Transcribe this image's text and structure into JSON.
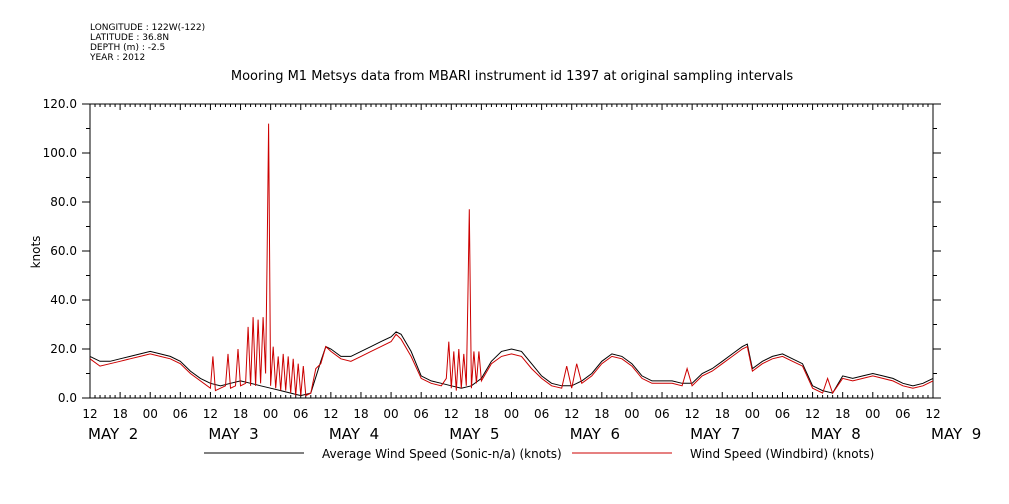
{
  "header": {
    "meta_lines": [
      "LONGITUDE : 122W(-122)",
      "LATITUDE : 36.8N",
      "DEPTH (m) : -2.5",
      "YEAR : 2012"
    ]
  },
  "chart_data": {
    "type": "line",
    "title": "Mooring M1 Metsys data from MBARI instrument id 1397 at original sampling intervals",
    "xlabel": "",
    "ylabel": "knots",
    "ylim": [
      0,
      120
    ],
    "y_ticks": [
      0,
      20,
      40,
      60,
      80,
      100,
      120
    ],
    "x_unit": "hours since May 2 12:00 (2012)",
    "xlim": [
      0,
      168
    ],
    "x_ticks": [
      {
        "t": 0,
        "label": "12"
      },
      {
        "t": 6,
        "label": "18"
      },
      {
        "t": 12,
        "label": "00"
      },
      {
        "t": 18,
        "label": "06"
      },
      {
        "t": 24,
        "label": "12"
      },
      {
        "t": 30,
        "label": "18"
      },
      {
        "t": 36,
        "label": "00"
      },
      {
        "t": 42,
        "label": "06"
      },
      {
        "t": 48,
        "label": "12"
      },
      {
        "t": 54,
        "label": "18"
      },
      {
        "t": 60,
        "label": "00"
      },
      {
        "t": 66,
        "label": "06"
      },
      {
        "t": 72,
        "label": "12"
      },
      {
        "t": 78,
        "label": "18"
      },
      {
        "t": 84,
        "label": "00"
      },
      {
        "t": 90,
        "label": "06"
      },
      {
        "t": 96,
        "label": "12"
      },
      {
        "t": 102,
        "label": "18"
      },
      {
        "t": 108,
        "label": "00"
      },
      {
        "t": 114,
        "label": "06"
      },
      {
        "t": 120,
        "label": "12"
      },
      {
        "t": 126,
        "label": "18"
      },
      {
        "t": 132,
        "label": "00"
      },
      {
        "t": 138,
        "label": "06"
      },
      {
        "t": 144,
        "label": "12"
      },
      {
        "t": 150,
        "label": "18"
      },
      {
        "t": 156,
        "label": "00"
      },
      {
        "t": 162,
        "label": "06"
      },
      {
        "t": 168,
        "label": "12"
      }
    ],
    "day_labels": [
      {
        "t": 0,
        "label": "MAY  2"
      },
      {
        "t": 24,
        "label": "MAY  3"
      },
      {
        "t": 48,
        "label": "MAY  4"
      },
      {
        "t": 72,
        "label": "MAY  5"
      },
      {
        "t": 96,
        "label": "MAY  6"
      },
      {
        "t": 120,
        "label": "MAY  7"
      },
      {
        "t": 144,
        "label": "MAY  8"
      },
      {
        "t": 168,
        "label": "MAY  9"
      }
    ],
    "grid": false,
    "legend_position": "bottom",
    "series": [
      {
        "name": "Average Wind Speed (Sonic-n/a) (knots)",
        "color": "#000000",
        "points": [
          [
            0,
            17
          ],
          [
            2,
            15
          ],
          [
            4,
            15
          ],
          [
            6,
            16
          ],
          [
            8,
            17
          ],
          [
            10,
            18
          ],
          [
            12,
            19
          ],
          [
            14,
            18
          ],
          [
            16,
            17
          ],
          [
            18,
            15
          ],
          [
            20,
            11
          ],
          [
            22,
            8
          ],
          [
            24,
            6
          ],
          [
            26,
            5
          ],
          [
            28,
            6
          ],
          [
            30,
            7
          ],
          [
            32,
            6
          ],
          [
            34,
            5
          ],
          [
            36,
            4
          ],
          [
            38,
            3
          ],
          [
            40,
            2
          ],
          [
            42,
            1
          ],
          [
            44,
            2
          ],
          [
            46,
            15
          ],
          [
            47,
            21
          ],
          [
            48,
            20
          ],
          [
            50,
            17
          ],
          [
            52,
            17
          ],
          [
            54,
            19
          ],
          [
            56,
            21
          ],
          [
            58,
            23
          ],
          [
            60,
            25
          ],
          [
            61,
            27
          ],
          [
            62,
            26
          ],
          [
            64,
            19
          ],
          [
            66,
            9
          ],
          [
            68,
            7
          ],
          [
            70,
            6
          ],
          [
            72,
            5
          ],
          [
            74,
            4
          ],
          [
            76,
            5
          ],
          [
            78,
            8
          ],
          [
            80,
            15
          ],
          [
            82,
            19
          ],
          [
            84,
            20
          ],
          [
            86,
            19
          ],
          [
            88,
            14
          ],
          [
            90,
            9
          ],
          [
            92,
            6
          ],
          [
            94,
            5
          ],
          [
            96,
            5
          ],
          [
            98,
            7
          ],
          [
            100,
            10
          ],
          [
            102,
            15
          ],
          [
            104,
            18
          ],
          [
            106,
            17
          ],
          [
            108,
            14
          ],
          [
            110,
            9
          ],
          [
            112,
            7
          ],
          [
            114,
            7
          ],
          [
            116,
            7
          ],
          [
            118,
            6
          ],
          [
            120,
            6
          ],
          [
            122,
            10
          ],
          [
            124,
            12
          ],
          [
            126,
            15
          ],
          [
            128,
            18
          ],
          [
            130,
            21
          ],
          [
            131,
            22
          ],
          [
            132,
            12
          ],
          [
            134,
            15
          ],
          [
            136,
            17
          ],
          [
            138,
            18
          ],
          [
            140,
            16
          ],
          [
            142,
            14
          ],
          [
            144,
            5
          ],
          [
            146,
            3
          ],
          [
            148,
            2
          ],
          [
            150,
            9
          ],
          [
            152,
            8
          ],
          [
            154,
            9
          ],
          [
            156,
            10
          ],
          [
            158,
            9
          ],
          [
            160,
            8
          ],
          [
            162,
            6
          ],
          [
            164,
            5
          ],
          [
            166,
            6
          ],
          [
            168,
            8
          ]
        ]
      },
      {
        "name": "Wind Speed (Windbird) (knots)",
        "color": "#cc0000",
        "points": [
          [
            0,
            16
          ],
          [
            2,
            13
          ],
          [
            4,
            14
          ],
          [
            6,
            15
          ],
          [
            8,
            16
          ],
          [
            10,
            17
          ],
          [
            12,
            18
          ],
          [
            14,
            17
          ],
          [
            16,
            16
          ],
          [
            18,
            14
          ],
          [
            20,
            10
          ],
          [
            22,
            7
          ],
          [
            24,
            4
          ],
          [
            24.5,
            17
          ],
          [
            25,
            3
          ],
          [
            26,
            4
          ],
          [
            27,
            5
          ],
          [
            27.5,
            18
          ],
          [
            28,
            4
          ],
          [
            29,
            5
          ],
          [
            29.5,
            20
          ],
          [
            30,
            5
          ],
          [
            31,
            6
          ],
          [
            31.5,
            29
          ],
          [
            32,
            5
          ],
          [
            32.5,
            33
          ],
          [
            33,
            5
          ],
          [
            33.5,
            32
          ],
          [
            34,
            6
          ],
          [
            34.5,
            33
          ],
          [
            35,
            10
          ],
          [
            35.3,
            57
          ],
          [
            35.6,
            112
          ],
          [
            36,
            5
          ],
          [
            36.5,
            21
          ],
          [
            37,
            4
          ],
          [
            37.5,
            17
          ],
          [
            38,
            3
          ],
          [
            38.5,
            18
          ],
          [
            39,
            3
          ],
          [
            39.5,
            17
          ],
          [
            40,
            2
          ],
          [
            40.5,
            16
          ],
          [
            41,
            1
          ],
          [
            41.5,
            14
          ],
          [
            42,
            1
          ],
          [
            42.5,
            13
          ],
          [
            43,
            1
          ],
          [
            44,
            2
          ],
          [
            45,
            12
          ],
          [
            46,
            14
          ],
          [
            47,
            21
          ],
          [
            48,
            19
          ],
          [
            50,
            16
          ],
          [
            52,
            15
          ],
          [
            54,
            17
          ],
          [
            56,
            19
          ],
          [
            58,
            21
          ],
          [
            60,
            23
          ],
          [
            61,
            26
          ],
          [
            62,
            24
          ],
          [
            64,
            17
          ],
          [
            66,
            8
          ],
          [
            68,
            6
          ],
          [
            70,
            5
          ],
          [
            71,
            8
          ],
          [
            71.5,
            23
          ],
          [
            72,
            4
          ],
          [
            72.5,
            19
          ],
          [
            73,
            3
          ],
          [
            73.5,
            20
          ],
          [
            74,
            4
          ],
          [
            74.5,
            18
          ],
          [
            75,
            5
          ],
          [
            75.3,
            39
          ],
          [
            75.6,
            77
          ],
          [
            76,
            4
          ],
          [
            76.5,
            19
          ],
          [
            77,
            6
          ],
          [
            77.5,
            19
          ],
          [
            78,
            7
          ],
          [
            80,
            14
          ],
          [
            82,
            17
          ],
          [
            84,
            18
          ],
          [
            86,
            17
          ],
          [
            88,
            12
          ],
          [
            90,
            8
          ],
          [
            92,
            5
          ],
          [
            94,
            4
          ],
          [
            95,
            13
          ],
          [
            96,
            4
          ],
          [
            97,
            14
          ],
          [
            98,
            6
          ],
          [
            100,
            9
          ],
          [
            102,
            14
          ],
          [
            104,
            17
          ],
          [
            106,
            16
          ],
          [
            108,
            13
          ],
          [
            110,
            8
          ],
          [
            112,
            6
          ],
          [
            114,
            6
          ],
          [
            116,
            6
          ],
          [
            118,
            5
          ],
          [
            119,
            12
          ],
          [
            120,
            5
          ],
          [
            122,
            9
          ],
          [
            124,
            11
          ],
          [
            126,
            14
          ],
          [
            128,
            17
          ],
          [
            130,
            20
          ],
          [
            131,
            21
          ],
          [
            132,
            11
          ],
          [
            134,
            14
          ],
          [
            136,
            16
          ],
          [
            138,
            17
          ],
          [
            140,
            15
          ],
          [
            142,
            13
          ],
          [
            144,
            4
          ],
          [
            146,
            2
          ],
          [
            147,
            8
          ],
          [
            148,
            2
          ],
          [
            150,
            8
          ],
          [
            152,
            7
          ],
          [
            154,
            8
          ],
          [
            156,
            9
          ],
          [
            158,
            8
          ],
          [
            160,
            7
          ],
          [
            162,
            5
          ],
          [
            164,
            4
          ],
          [
            166,
            5
          ],
          [
            168,
            7
          ]
        ]
      }
    ]
  }
}
